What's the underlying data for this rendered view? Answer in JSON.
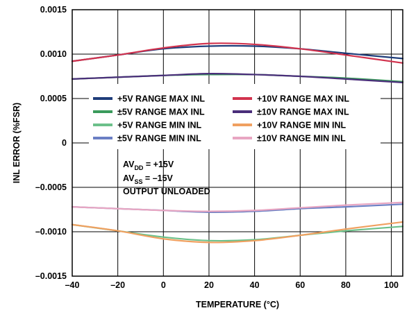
{
  "chart_data": {
    "type": "line",
    "xlabel": "TEMPERATURE (°C)",
    "ylabel": "INL ERROR (%FSR)",
    "xlim": [
      -40,
      105
    ],
    "ylim": [
      -0.0015,
      0.0015
    ],
    "x_ticks": [
      -40,
      -20,
      0,
      20,
      40,
      60,
      80,
      100
    ],
    "x_tick_labels": [
      "–40",
      "–20",
      "0",
      "20",
      "40",
      "60",
      "80",
      "100"
    ],
    "y_ticks": [
      0.0015,
      0.001,
      0.0005,
      0,
      -0.0005,
      -0.001,
      -0.0015
    ],
    "y_tick_labels": [
      "0.0015",
      "0.0010",
      "0.0005",
      "0",
      "–0.0005",
      "–0.0010",
      "–0.0015"
    ],
    "grid": true,
    "legend_position": "center",
    "x": [
      -40,
      -20,
      0,
      20,
      40,
      60,
      80,
      105
    ],
    "series": [
      {
        "name": "+5V RANGE MAX INL",
        "color": "#1f3d7a",
        "values": [
          0.00092,
          0.00099,
          0.00106,
          0.00109,
          0.00109,
          0.00106,
          0.00101,
          0.00095
        ]
      },
      {
        "name": "±5V RANGE MAX INL",
        "color": "#3a9a5c",
        "values": [
          0.00072,
          0.00074,
          0.00076,
          0.00077,
          0.00077,
          0.00075,
          0.00073,
          0.00069
        ]
      },
      {
        "name": "+5V RANGE MIN INL",
        "color": "#6cc08a",
        "values": [
          -0.00092,
          -0.00099,
          -0.00106,
          -0.0011,
          -0.00109,
          -0.00104,
          -0.00099,
          -0.00094
        ]
      },
      {
        "name": "±5V RANGE MIN INL",
        "color": "#6b7fc4",
        "values": [
          -0.00072,
          -0.00074,
          -0.00076,
          -0.00078,
          -0.00077,
          -0.00074,
          -0.00072,
          -0.00069
        ]
      },
      {
        "name": "+10V RANGE MAX INL",
        "color": "#d2334e",
        "values": [
          0.00092,
          0.00099,
          0.00107,
          0.00112,
          0.00111,
          0.00106,
          0.00099,
          0.0009
        ]
      },
      {
        "name": "±10V RANGE MAX INL",
        "color": "#4a2e7a",
        "values": [
          0.00072,
          0.00074,
          0.00076,
          0.00078,
          0.00077,
          0.00075,
          0.00072,
          0.00068
        ]
      },
      {
        "name": "+10V RANGE MIN INL",
        "color": "#f0a060",
        "values": [
          -0.00092,
          -0.00099,
          -0.00108,
          -0.00112,
          -0.0011,
          -0.00104,
          -0.00097,
          -0.00089
        ]
      },
      {
        "name": "±10V RANGE MIN INL",
        "color": "#e8a6c2",
        "values": [
          -0.00072,
          -0.00074,
          -0.00076,
          -0.00077,
          -0.00076,
          -0.00073,
          -0.0007,
          -0.00067
        ]
      }
    ],
    "annotation": {
      "line1_main": "AV",
      "line1_sub": "DD",
      "line1_rest": " = +15V",
      "line2_main": "AV",
      "line2_sub": "SS",
      "line2_rest": " = –15V",
      "line3": "OUTPUT UNLOADED"
    }
  }
}
